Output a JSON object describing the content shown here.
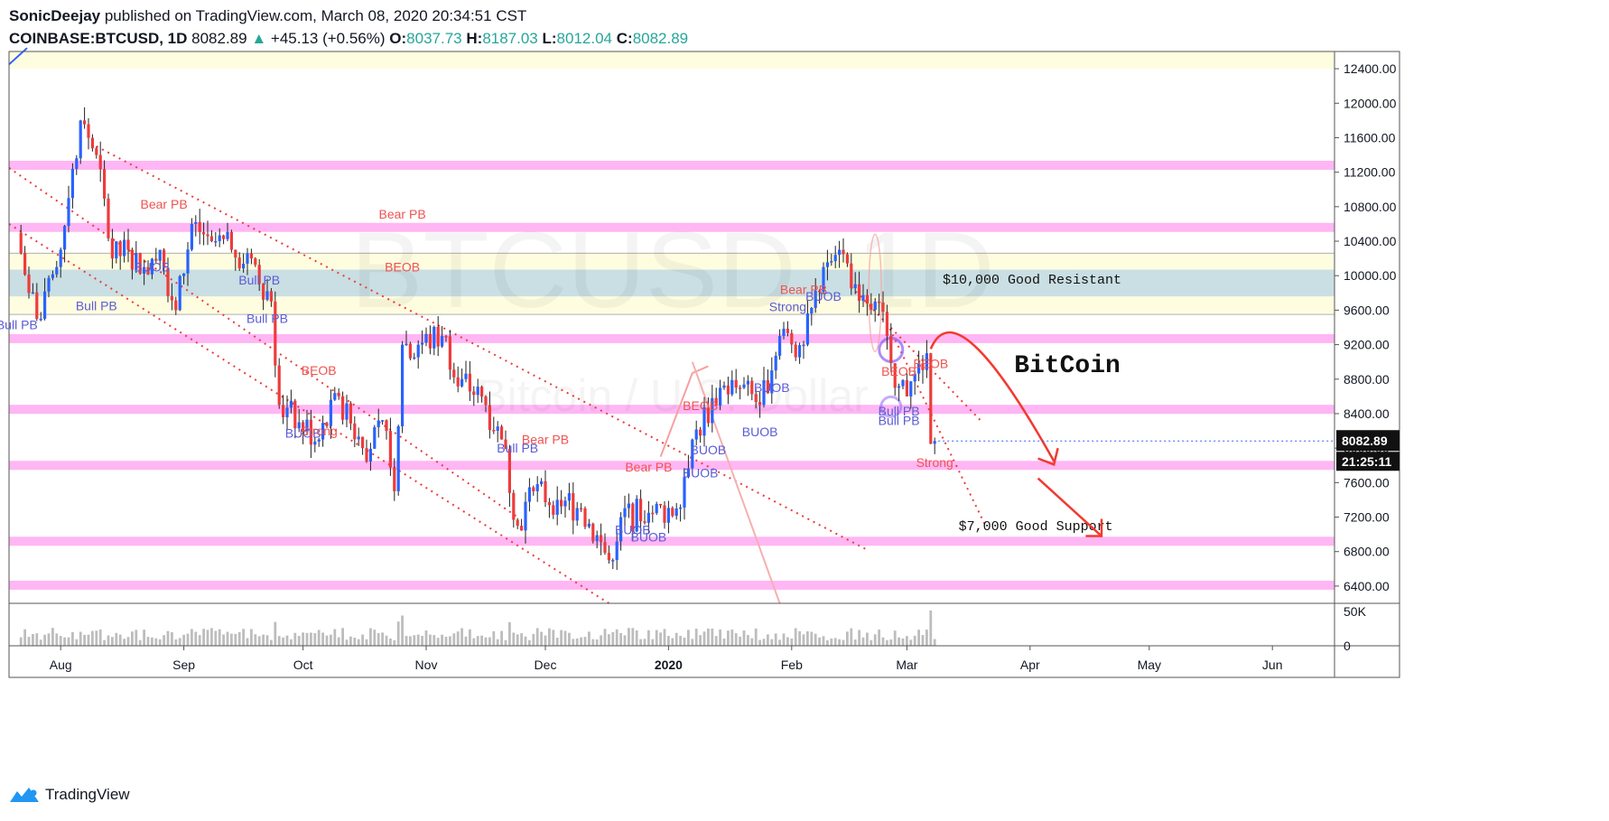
{
  "header": {
    "author": "SonicDeejay",
    "published": "published on TradingView.com, March 08, 2020 20:34:51 CST",
    "symbol": "COINBASE:BTCUSD, 1D",
    "last": "8082.89",
    "change_arrow": "▲",
    "change": "+45.13 (+0.56%)",
    "o_label": "O:",
    "o": "8037.73",
    "h_label": "H:",
    "h": "8187.03",
    "l_label": "L:",
    "l": "8012.04",
    "c_label": "C:",
    "c": "8082.89"
  },
  "watermark": {
    "line1": "BTCUSD, 1D",
    "line2": "Bitcoin / U.S. Dollar"
  },
  "footer": {
    "brand": "TradingView",
    "icon": "tradingview-logo-icon"
  },
  "colors": {
    "up": "#2962ff",
    "down": "#ef3b3b",
    "zone_pink": "#ff9ef0",
    "zone_yellow": "#fffde0",
    "zone_blue": "#c9dfe3",
    "label_blue": "#5b5bd6",
    "label_red": "#ef5350",
    "arrow_red": "#f23a30"
  },
  "chart_data": {
    "type": "candlestick",
    "symbol": "COINBASE:BTCUSD",
    "timeframe": "1D",
    "ylim": [
      6200,
      12600
    ],
    "y_ticks": [
      "12400.00",
      "12000.00",
      "11600.00",
      "11200.00",
      "10800.00",
      "10400.00",
      "10000.00",
      "9600.00",
      "9200.00",
      "8800.00",
      "8400.00",
      "8000.00",
      "7600.00",
      "7200.00",
      "6800.00",
      "6400.00"
    ],
    "x_ticks": [
      "Aug",
      "Sep",
      "Oct",
      "Nov",
      "Dec",
      "2020",
      "Feb",
      "Mar",
      "Apr",
      "May",
      "Jun"
    ],
    "price_label": "8082.89",
    "countdown_label": "21:25:11",
    "volume_ticks": [
      "50K",
      "0"
    ],
    "close_series": [
      {
        "t": "2019-07-21",
        "c": 10500
      },
      {
        "t": "2019-07-24",
        "c": 9800
      },
      {
        "t": "2019-07-27",
        "c": 9500
      },
      {
        "t": "2019-07-31",
        "c": 10100
      },
      {
        "t": "2019-08-03",
        "c": 10900
      },
      {
        "t": "2019-08-06",
        "c": 11800
      },
      {
        "t": "2019-08-10",
        "c": 11400
      },
      {
        "t": "2019-08-14",
        "c": 10200
      },
      {
        "t": "2019-08-18",
        "c": 10300
      },
      {
        "t": "2019-08-22",
        "c": 10100
      },
      {
        "t": "2019-08-26",
        "c": 10300
      },
      {
        "t": "2019-08-30",
        "c": 9600
      },
      {
        "t": "2019-09-03",
        "c": 10600
      },
      {
        "t": "2019-09-08",
        "c": 10400
      },
      {
        "t": "2019-09-13",
        "c": 10300
      },
      {
        "t": "2019-09-18",
        "c": 10200
      },
      {
        "t": "2019-09-23",
        "c": 9700
      },
      {
        "t": "2019-09-25",
        "c": 8500
      },
      {
        "t": "2019-09-30",
        "c": 8300
      },
      {
        "t": "2019-10-05",
        "c": 8100
      },
      {
        "t": "2019-10-10",
        "c": 8600
      },
      {
        "t": "2019-10-16",
        "c": 8000
      },
      {
        "t": "2019-10-22",
        "c": 8200
      },
      {
        "t": "2019-10-24",
        "c": 7500
      },
      {
        "t": "2019-10-26",
        "c": 9200
      },
      {
        "t": "2019-10-30",
        "c": 9200
      },
      {
        "t": "2019-11-05",
        "c": 9300
      },
      {
        "t": "2019-11-10",
        "c": 8800
      },
      {
        "t": "2019-11-16",
        "c": 8500
      },
      {
        "t": "2019-11-20",
        "c": 8100
      },
      {
        "t": "2019-11-24",
        "c": 7100
      },
      {
        "t": "2019-11-28",
        "c": 7500
      },
      {
        "t": "2019-12-04",
        "c": 7400
      },
      {
        "t": "2019-12-10",
        "c": 7300
      },
      {
        "t": "2019-12-17",
        "c": 6700
      },
      {
        "t": "2019-12-20",
        "c": 7200
      },
      {
        "t": "2019-12-27",
        "c": 7250
      },
      {
        "t": "2020-01-03",
        "c": 7300
      },
      {
        "t": "2020-01-07",
        "c": 8100
      },
      {
        "t": "2020-01-14",
        "c": 8700
      },
      {
        "t": "2020-01-19",
        "c": 8700
      },
      {
        "t": "2020-01-24",
        "c": 8500
      },
      {
        "t": "2020-01-29",
        "c": 9300
      },
      {
        "t": "2020-02-04",
        "c": 9200
      },
      {
        "t": "2020-02-09",
        "c": 10100
      },
      {
        "t": "2020-02-13",
        "c": 10300
      },
      {
        "t": "2020-02-17",
        "c": 9900
      },
      {
        "t": "2020-02-22",
        "c": 9700
      },
      {
        "t": "2020-02-25",
        "c": 9300
      },
      {
        "t": "2020-02-27",
        "c": 8700
      },
      {
        "t": "2020-03-01",
        "c": 8600
      },
      {
        "t": "2020-03-06",
        "c": 9100
      },
      {
        "t": "2020-03-07",
        "c": 8050
      },
      {
        "t": "2020-03-08",
        "c": 8082.89
      }
    ],
    "horizontal_zones": [
      {
        "kind": "yellow",
        "from": 12400,
        "to": 12650
      },
      {
        "kind": "yellow",
        "from": 9550,
        "to": 10260
      },
      {
        "kind": "blue",
        "from": 9760,
        "to": 10070
      },
      {
        "kind": "pink",
        "level": 11280
      },
      {
        "kind": "pink",
        "level": 10560
      },
      {
        "kind": "pink",
        "level": 9270
      },
      {
        "kind": "pink",
        "level": 8450
      },
      {
        "kind": "pink",
        "level": 7800
      },
      {
        "kind": "pink",
        "level": 6920
      },
      {
        "kind": "pink",
        "level": 6410
      }
    ],
    "text_annotations": [
      {
        "text": "$10,000 Good Resistant",
        "price": 9910,
        "date": "2020-03-10"
      },
      {
        "text": "BitCoin",
        "price": 8880,
        "date": "2020-03-28"
      },
      {
        "text": "$7,000 Good Support",
        "price": 7050,
        "date": "2020-03-14"
      }
    ],
    "pattern_labels": [
      {
        "text": "Bull PB",
        "color": "blue",
        "date": "2019-07-21",
        "price": 9380
      },
      {
        "text": "Bull PB",
        "color": "blue",
        "date": "2019-08-10",
        "price": 9600
      },
      {
        "text": "BUOB",
        "color": "blue",
        "date": "2019-08-24",
        "price": 10050
      },
      {
        "text": "Bear PB",
        "color": "red",
        "date": "2019-08-27",
        "price": 10780
      },
      {
        "text": "Bull PB",
        "color": "blue",
        "date": "2019-09-20",
        "price": 9900
      },
      {
        "text": "Bull PB",
        "color": "blue",
        "date": "2019-09-22",
        "price": 9450
      },
      {
        "text": "BEOB",
        "color": "red",
        "date": "2019-10-05",
        "price": 8850
      },
      {
        "text": "BUOB",
        "color": "blue",
        "date": "2019-10-01",
        "price": 8120
      },
      {
        "text": "Strong",
        "color": "red",
        "date": "2019-10-05",
        "price": 8150
      },
      {
        "text": "Bear PB",
        "color": "red",
        "date": "2019-10-26",
        "price": 10660
      },
      {
        "text": "BEOB",
        "color": "red",
        "date": "2019-10-26",
        "price": 10050
      },
      {
        "text": "Bull PB",
        "color": "blue",
        "date": "2019-11-24",
        "price": 7950
      },
      {
        "text": "Bear PB",
        "color": "red",
        "date": "2019-12-01",
        "price": 8050
      },
      {
        "text": "BUOB",
        "color": "blue",
        "date": "2019-12-23",
        "price": 7000
      },
      {
        "text": "BUOB",
        "color": "blue",
        "date": "2019-12-27",
        "price": 6920
      },
      {
        "text": "Bear PB",
        "color": "red",
        "date": "2019-12-27",
        "price": 7730
      },
      {
        "text": "BEOB",
        "color": "red",
        "date": "2020-01-09",
        "price": 8440
      },
      {
        "text": "BUOB",
        "color": "blue",
        "date": "2020-01-11",
        "price": 7930
      },
      {
        "text": "BUOB",
        "color": "blue",
        "date": "2020-01-09",
        "price": 7660
      },
      {
        "text": "BUOB",
        "color": "blue",
        "date": "2020-01-27",
        "price": 8650
      },
      {
        "text": "BUOB",
        "color": "blue",
        "date": "2020-01-24",
        "price": 8140
      },
      {
        "text": "Strong",
        "color": "blue",
        "date": "2020-01-31",
        "price": 9590
      },
      {
        "text": "Bear PB",
        "color": "red",
        "date": "2020-02-04",
        "price": 9790
      },
      {
        "text": "BUOB",
        "color": "blue",
        "date": "2020-02-09",
        "price": 9710
      },
      {
        "text": "BEOB",
        "color": "red",
        "date": "2020-02-28",
        "price": 8840
      },
      {
        "text": "BEOB",
        "color": "red",
        "date": "2020-03-07",
        "price": 8930
      },
      {
        "text": "Bull PB",
        "color": "blue",
        "date": "2020-02-28",
        "price": 8380
      },
      {
        "text": "Bull PB",
        "color": "blue",
        "date": "2020-02-28",
        "price": 8270
      },
      {
        "text": "Strong",
        "color": "red",
        "date": "2020-03-08",
        "price": 7780
      }
    ]
  }
}
